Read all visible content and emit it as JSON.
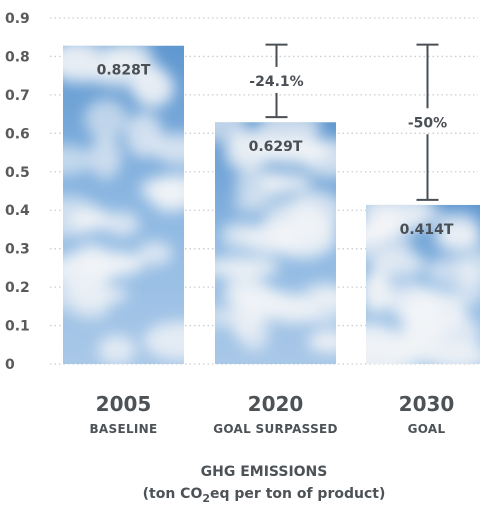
{
  "chart_data": {
    "type": "bar",
    "categories": [
      "2005",
      "2020",
      "2030"
    ],
    "category_sublabels": [
      "BASELINE",
      "GOAL SURPASSED",
      "GOAL"
    ],
    "values": [
      0.828,
      0.629,
      0.414
    ],
    "value_labels": [
      "0.828T",
      "0.629T",
      "0.414T"
    ],
    "annotations": [
      {
        "from_value": 0.828,
        "to_value": 0.629,
        "bar": 1,
        "label": "-24.1%"
      },
      {
        "from_value": 0.828,
        "to_value": 0.414,
        "bar": 2,
        "label": "-50%"
      }
    ],
    "xlabel": "GHG EMISSIONS",
    "xlabel_sub": {
      "before": "(ton CO",
      "subscript": "2",
      "after": "eq per ton of product)"
    },
    "ylim": [
      0,
      0.9
    ],
    "yticks": [
      "0",
      "0.1",
      "0.2",
      "0.3",
      "0.4",
      "0.5",
      "0.6",
      "0.7",
      "0.8",
      "0.9"
    ],
    "grid": true,
    "bar_fill": "sky-clouds",
    "colors": {
      "sky": "#6a9fd4",
      "cloud": "#f2f4f7",
      "grid": "#c9ced3",
      "text": "#4d5257",
      "tick": "#5a5a5a",
      "bracket": "#4a4f55"
    }
  }
}
